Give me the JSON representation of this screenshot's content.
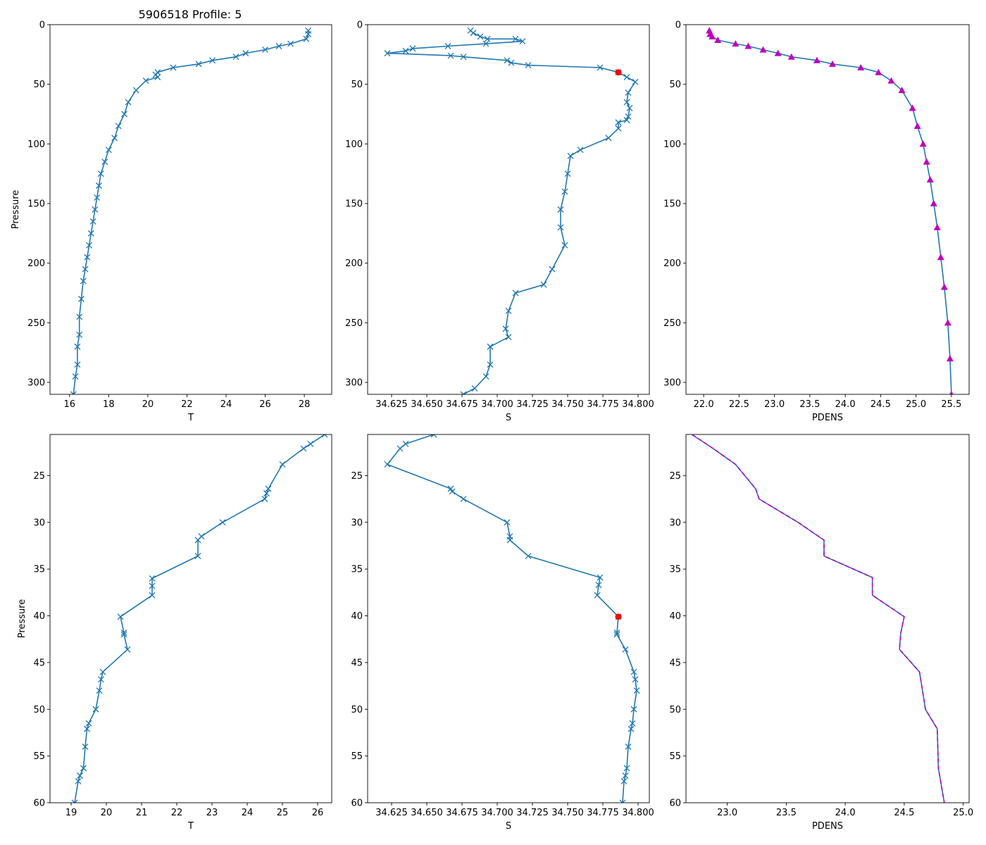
{
  "title": "5906518 Profile: 5",
  "colors": {
    "line": "#1f77b4",
    "density_marker": "#bf00bf",
    "highlight": "#ff0000"
  },
  "chart_data": [
    {
      "id": "top-temperature",
      "type": "line",
      "xlabel": "T",
      "ylabel": "Pressure",
      "y_inverted": true,
      "xlim": [
        15.0,
        29.4
      ],
      "ylim": [
        310,
        0
      ],
      "xticks": [
        16,
        18,
        20,
        22,
        24,
        26,
        28
      ],
      "yticks": [
        0,
        50,
        100,
        150,
        200,
        250,
        300
      ],
      "marker": "x",
      "series": [
        {
          "name": "T",
          "x": [
            28.2,
            28.2,
            28.1,
            27.3,
            26.7,
            26.0,
            25.0,
            24.5,
            23.3,
            22.6,
            21.3,
            20.5,
            20.4,
            20.5,
            19.9,
            19.4,
            19.0,
            18.8,
            18.5,
            18.3,
            18.0,
            17.8,
            17.6,
            17.5,
            17.4,
            17.3,
            17.2,
            17.1,
            17.0,
            16.9,
            16.8,
            16.7,
            16.6,
            16.5,
            16.5,
            16.4,
            16.4,
            16.3,
            16.2
          ],
          "y": [
            5,
            8,
            12,
            16,
            18,
            21,
            24,
            27,
            30,
            33,
            36,
            40,
            42,
            44,
            47,
            55,
            65,
            75,
            85,
            95,
            105,
            115,
            125,
            135,
            145,
            155,
            165,
            175,
            185,
            195,
            205,
            215,
            230,
            245,
            260,
            270,
            285,
            295,
            310
          ]
        }
      ]
    },
    {
      "id": "top-salinity",
      "type": "line",
      "xlabel": "S",
      "y_inverted": true,
      "xlim": [
        34.608,
        34.808
      ],
      "ylim": [
        310,
        0
      ],
      "xticks": [
        34.625,
        34.65,
        34.675,
        34.7,
        34.725,
        34.75,
        34.775,
        34.8
      ],
      "xticklabels": [
        "34.625",
        "34.650",
        "34.675",
        "34.700",
        "34.725",
        "34.750",
        "34.775",
        "34.800"
      ],
      "yticks": [
        0,
        50,
        100,
        150,
        200,
        250,
        300
      ],
      "marker": "x",
      "highlight_point": {
        "x": 34.786,
        "y": 40
      },
      "series": [
        {
          "name": "S",
          "x": [
            34.681,
            34.683,
            34.688,
            34.693,
            34.713,
            34.718,
            34.692,
            34.665,
            34.64,
            34.635,
            34.622,
            34.667,
            34.676,
            34.707,
            34.71,
            34.722,
            34.773,
            34.786,
            34.792,
            34.798,
            34.793,
            34.792,
            34.794,
            34.793,
            34.792,
            34.786,
            34.786,
            34.779,
            34.759,
            34.752,
            34.75,
            34.748,
            34.745,
            34.745,
            34.748,
            34.739,
            34.733,
            34.713,
            34.708,
            34.706,
            34.708,
            34.695,
            34.695,
            34.692,
            34.684,
            34.676
          ],
          "y": [
            5,
            7,
            10,
            12,
            12,
            14,
            16,
            18,
            20,
            22,
            24,
            26,
            27,
            30,
            32,
            34,
            36,
            40,
            44,
            48,
            57,
            65,
            70,
            77,
            80,
            82,
            87,
            95,
            105,
            110,
            125,
            140,
            155,
            170,
            185,
            205,
            218,
            225,
            240,
            255,
            262,
            270,
            285,
            295,
            305,
            310
          ]
        }
      ]
    },
    {
      "id": "top-density",
      "type": "line",
      "xlabel": "PDENS",
      "y_inverted": true,
      "xlim": [
        21.75,
        25.75
      ],
      "ylim": [
        310,
        0
      ],
      "xticks": [
        22.0,
        22.5,
        23.0,
        23.5,
        24.0,
        24.5,
        25.0,
        25.5
      ],
      "xticklabels": [
        "22.0",
        "22.5",
        "23.0",
        "23.5",
        "24.0",
        "24.5",
        "25.0",
        "25.5"
      ],
      "yticks": [
        0,
        50,
        100,
        150,
        200,
        250,
        300
      ],
      "marker": "triangle",
      "series": [
        {
          "name": "PDENS",
          "x": [
            22.08,
            22.09,
            22.12,
            22.2,
            22.45,
            22.63,
            22.84,
            23.05,
            23.24,
            23.6,
            23.82,
            24.22,
            24.47,
            24.65,
            24.8,
            24.95,
            25.02,
            25.1,
            25.15,
            25.2,
            25.25,
            25.3,
            25.35,
            25.4,
            25.45,
            25.48,
            25.5
          ],
          "y": [
            5,
            8,
            10,
            13,
            16,
            18,
            21,
            24,
            27,
            30,
            33,
            36,
            40,
            47,
            55,
            70,
            85,
            100,
            115,
            130,
            150,
            170,
            195,
            220,
            250,
            280,
            310
          ]
        }
      ]
    },
    {
      "id": "bottom-temperature",
      "type": "line",
      "xlabel": "T",
      "ylabel": "Pressure",
      "y_inverted": true,
      "xlim": [
        18.4,
        26.4
      ],
      "ylim": [
        60,
        20.6
      ],
      "xticks": [
        19,
        20,
        21,
        22,
        23,
        24,
        25,
        26
      ],
      "yticks": [
        25,
        30,
        35,
        40,
        45,
        50,
        55,
        60
      ],
      "marker": "x",
      "series": [
        {
          "name": "T",
          "x": [
            26.2,
            25.8,
            25.6,
            25.0,
            24.6,
            24.55,
            24.5,
            23.3,
            22.7,
            22.6,
            22.6,
            21.3,
            21.3,
            21.3,
            20.4,
            20.5,
            20.5,
            20.6,
            19.9,
            19.85,
            19.8,
            19.7,
            19.5,
            19.45,
            19.4,
            19.35,
            19.25,
            19.2,
            19.1
          ],
          "y": [
            20.6,
            21.6,
            22.1,
            23.8,
            26.4,
            26.9,
            27.5,
            30.0,
            31.5,
            31.9,
            33.6,
            36.0,
            36.8,
            37.8,
            40.1,
            41.8,
            42.0,
            43.6,
            46.0,
            46.8,
            48.0,
            50.0,
            51.5,
            52.1,
            54.0,
            56.3,
            57.1,
            57.7,
            60.0
          ]
        }
      ]
    },
    {
      "id": "bottom-salinity",
      "type": "line",
      "xlabel": "S",
      "y_inverted": true,
      "xlim": [
        34.608,
        34.808
      ],
      "ylim": [
        60,
        20.6
      ],
      "xticks": [
        34.625,
        34.65,
        34.675,
        34.7,
        34.725,
        34.75,
        34.775,
        34.8
      ],
      "xticklabels": [
        "34.625",
        "34.650",
        "34.675",
        "34.700",
        "34.725",
        "34.750",
        "34.775",
        "34.800"
      ],
      "yticks": [
        25,
        30,
        35,
        40,
        45,
        50,
        55,
        60
      ],
      "marker": "x",
      "highlight_point": {
        "x": 34.786,
        "y": 40.1
      },
      "series": [
        {
          "name": "S",
          "x": [
            34.655,
            34.635,
            34.631,
            34.622,
            34.667,
            34.668,
            34.676,
            34.707,
            34.709,
            34.709,
            34.722,
            34.773,
            34.772,
            34.771,
            34.786,
            34.785,
            34.785,
            34.791,
            34.797,
            34.798,
            34.799,
            34.797,
            34.796,
            34.795,
            34.793,
            34.792,
            34.791,
            34.79,
            34.789
          ],
          "y": [
            20.6,
            21.6,
            22.1,
            23.8,
            26.4,
            26.7,
            27.5,
            30.0,
            31.5,
            31.9,
            33.6,
            35.9,
            36.7,
            37.8,
            40.1,
            41.8,
            42.0,
            43.6,
            46.0,
            46.8,
            48.0,
            50.0,
            51.5,
            52.1,
            54.0,
            56.3,
            57.1,
            57.7,
            60.0
          ]
        }
      ]
    },
    {
      "id": "bottom-density",
      "type": "line",
      "xlabel": "PDENS",
      "y_inverted": true,
      "xlim": [
        22.65,
        25.05
      ],
      "ylim": [
        60,
        20.6
      ],
      "xticks": [
        23.0,
        23.5,
        24.0,
        24.5,
        25.0
      ],
      "xticklabels": [
        "23.0",
        "23.5",
        "24.0",
        "24.5",
        "25.0"
      ],
      "yticks": [
        25,
        30,
        35,
        40,
        45,
        50,
        55,
        60
      ],
      "marker": "none",
      "dashed_overlay": true,
      "series": [
        {
          "name": "PDENS",
          "x": [
            22.7,
            22.88,
            23.07,
            23.24,
            23.27,
            23.6,
            23.82,
            23.82,
            24.23,
            24.23,
            24.5,
            24.47,
            24.46,
            24.63,
            24.68,
            24.78,
            24.79,
            24.84
          ],
          "y": [
            20.6,
            22.1,
            23.8,
            26.4,
            27.5,
            30.0,
            31.9,
            33.6,
            35.9,
            37.8,
            40.1,
            41.9,
            43.6,
            46.0,
            50.0,
            52.1,
            56.3,
            60.0
          ]
        }
      ]
    }
  ]
}
